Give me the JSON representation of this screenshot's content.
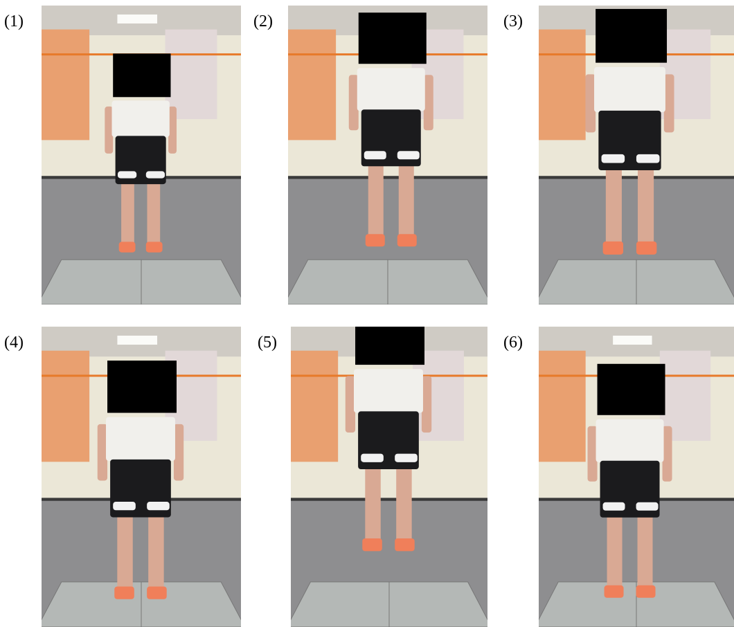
{
  "panels": [
    {
      "label": "(1)"
    },
    {
      "label": "(2)"
    },
    {
      "label": "(3)"
    },
    {
      "label": "(4)"
    },
    {
      "label": "(5)"
    },
    {
      "label": "(6)"
    }
  ]
}
